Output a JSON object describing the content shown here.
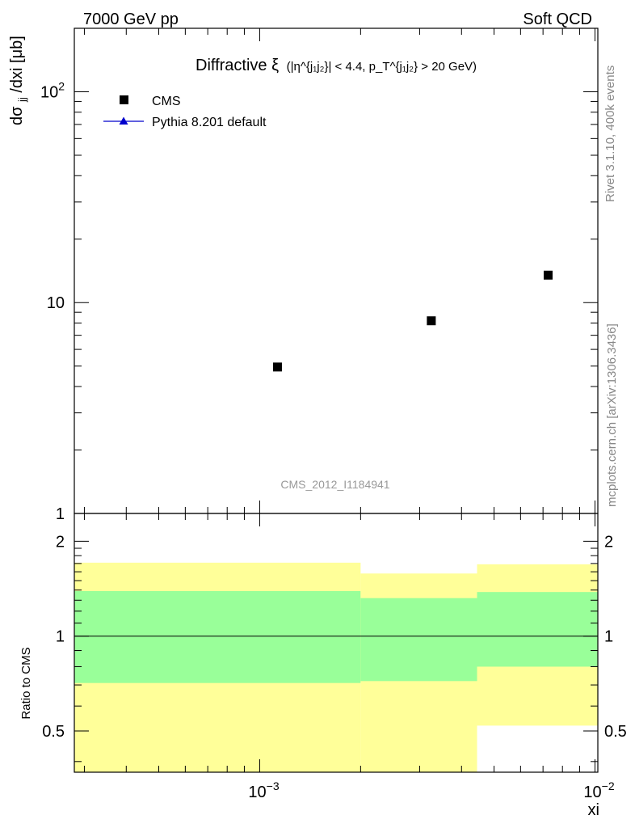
{
  "header": {
    "left": "7000 GeV pp",
    "right": "Soft QCD"
  },
  "side": {
    "rivet": "Rivet 3.1.10,  400k events",
    "mcplots": "mcplots.cern.ch [arXiv:1306.3436]"
  },
  "chart_data": [
    {
      "type": "scatter",
      "panel": "main",
      "title": {
        "main": "Diffractive ξ",
        "detail": "(|η^{j₁j₂}| < 4.4, p_T^{j₁j₂} > 20 GeV)"
      },
      "ylabel": {
        "text": "dσ",
        "sub": "jj",
        "rest": "/dxi [μb]"
      },
      "analysis_label": "CMS_2012_I1184941",
      "xscale": "log",
      "yscale": "log",
      "xlim": [
        0.00028,
        0.0102
      ],
      "ylim": [
        1,
        200
      ],
      "yticks": [
        {
          "value": 1,
          "label": "1"
        },
        {
          "value": 10,
          "label": "10"
        },
        {
          "value": 100,
          "base": "10",
          "exp": "2"
        }
      ],
      "legend_position": "top-left",
      "series": [
        {
          "name": "CMS",
          "marker": "square",
          "color": "#000000",
          "points": [
            {
              "x": 0.00113,
              "y": 4.95
            },
            {
              "x": 0.00325,
              "y": 8.2
            },
            {
              "x": 0.00725,
              "y": 13.5
            }
          ]
        },
        {
          "name": "Pythia 8.201 default",
          "marker": "triangle",
          "color": "#0000cc",
          "points": []
        }
      ]
    },
    {
      "type": "area",
      "panel": "ratio",
      "ylabel": "Ratio to CMS",
      "xlabel": "xi",
      "xscale": "log",
      "yscale": "log",
      "xlim": [
        0.00028,
        0.0102
      ],
      "ylim": [
        0.37,
        2.45
      ],
      "yticks": [
        {
          "value": 0.5,
          "label": "0.5"
        },
        {
          "value": 1,
          "label": "1"
        },
        {
          "value": 2,
          "label": "2"
        }
      ],
      "xticks": [
        {
          "value": 0.001,
          "base": "10",
          "exp": "−3"
        },
        {
          "value": 0.01,
          "base": "10",
          "exp": "−2"
        }
      ],
      "reference_line": 1,
      "bands": [
        {
          "x0": 0.00028,
          "x1": 0.002,
          "green": [
            0.71,
            1.39
          ],
          "yellow": [
            0.37,
            1.71
          ]
        },
        {
          "x0": 0.002,
          "x1": 0.00445,
          "green": [
            0.72,
            1.32
          ],
          "yellow": [
            0.37,
            1.58
          ]
        },
        {
          "x0": 0.00445,
          "x1": 0.0102,
          "green": [
            0.8,
            1.38
          ],
          "yellow": [
            0.52,
            1.69
          ]
        }
      ],
      "band_colors": {
        "green": "#99ff99",
        "yellow": "#ffff99"
      }
    }
  ]
}
